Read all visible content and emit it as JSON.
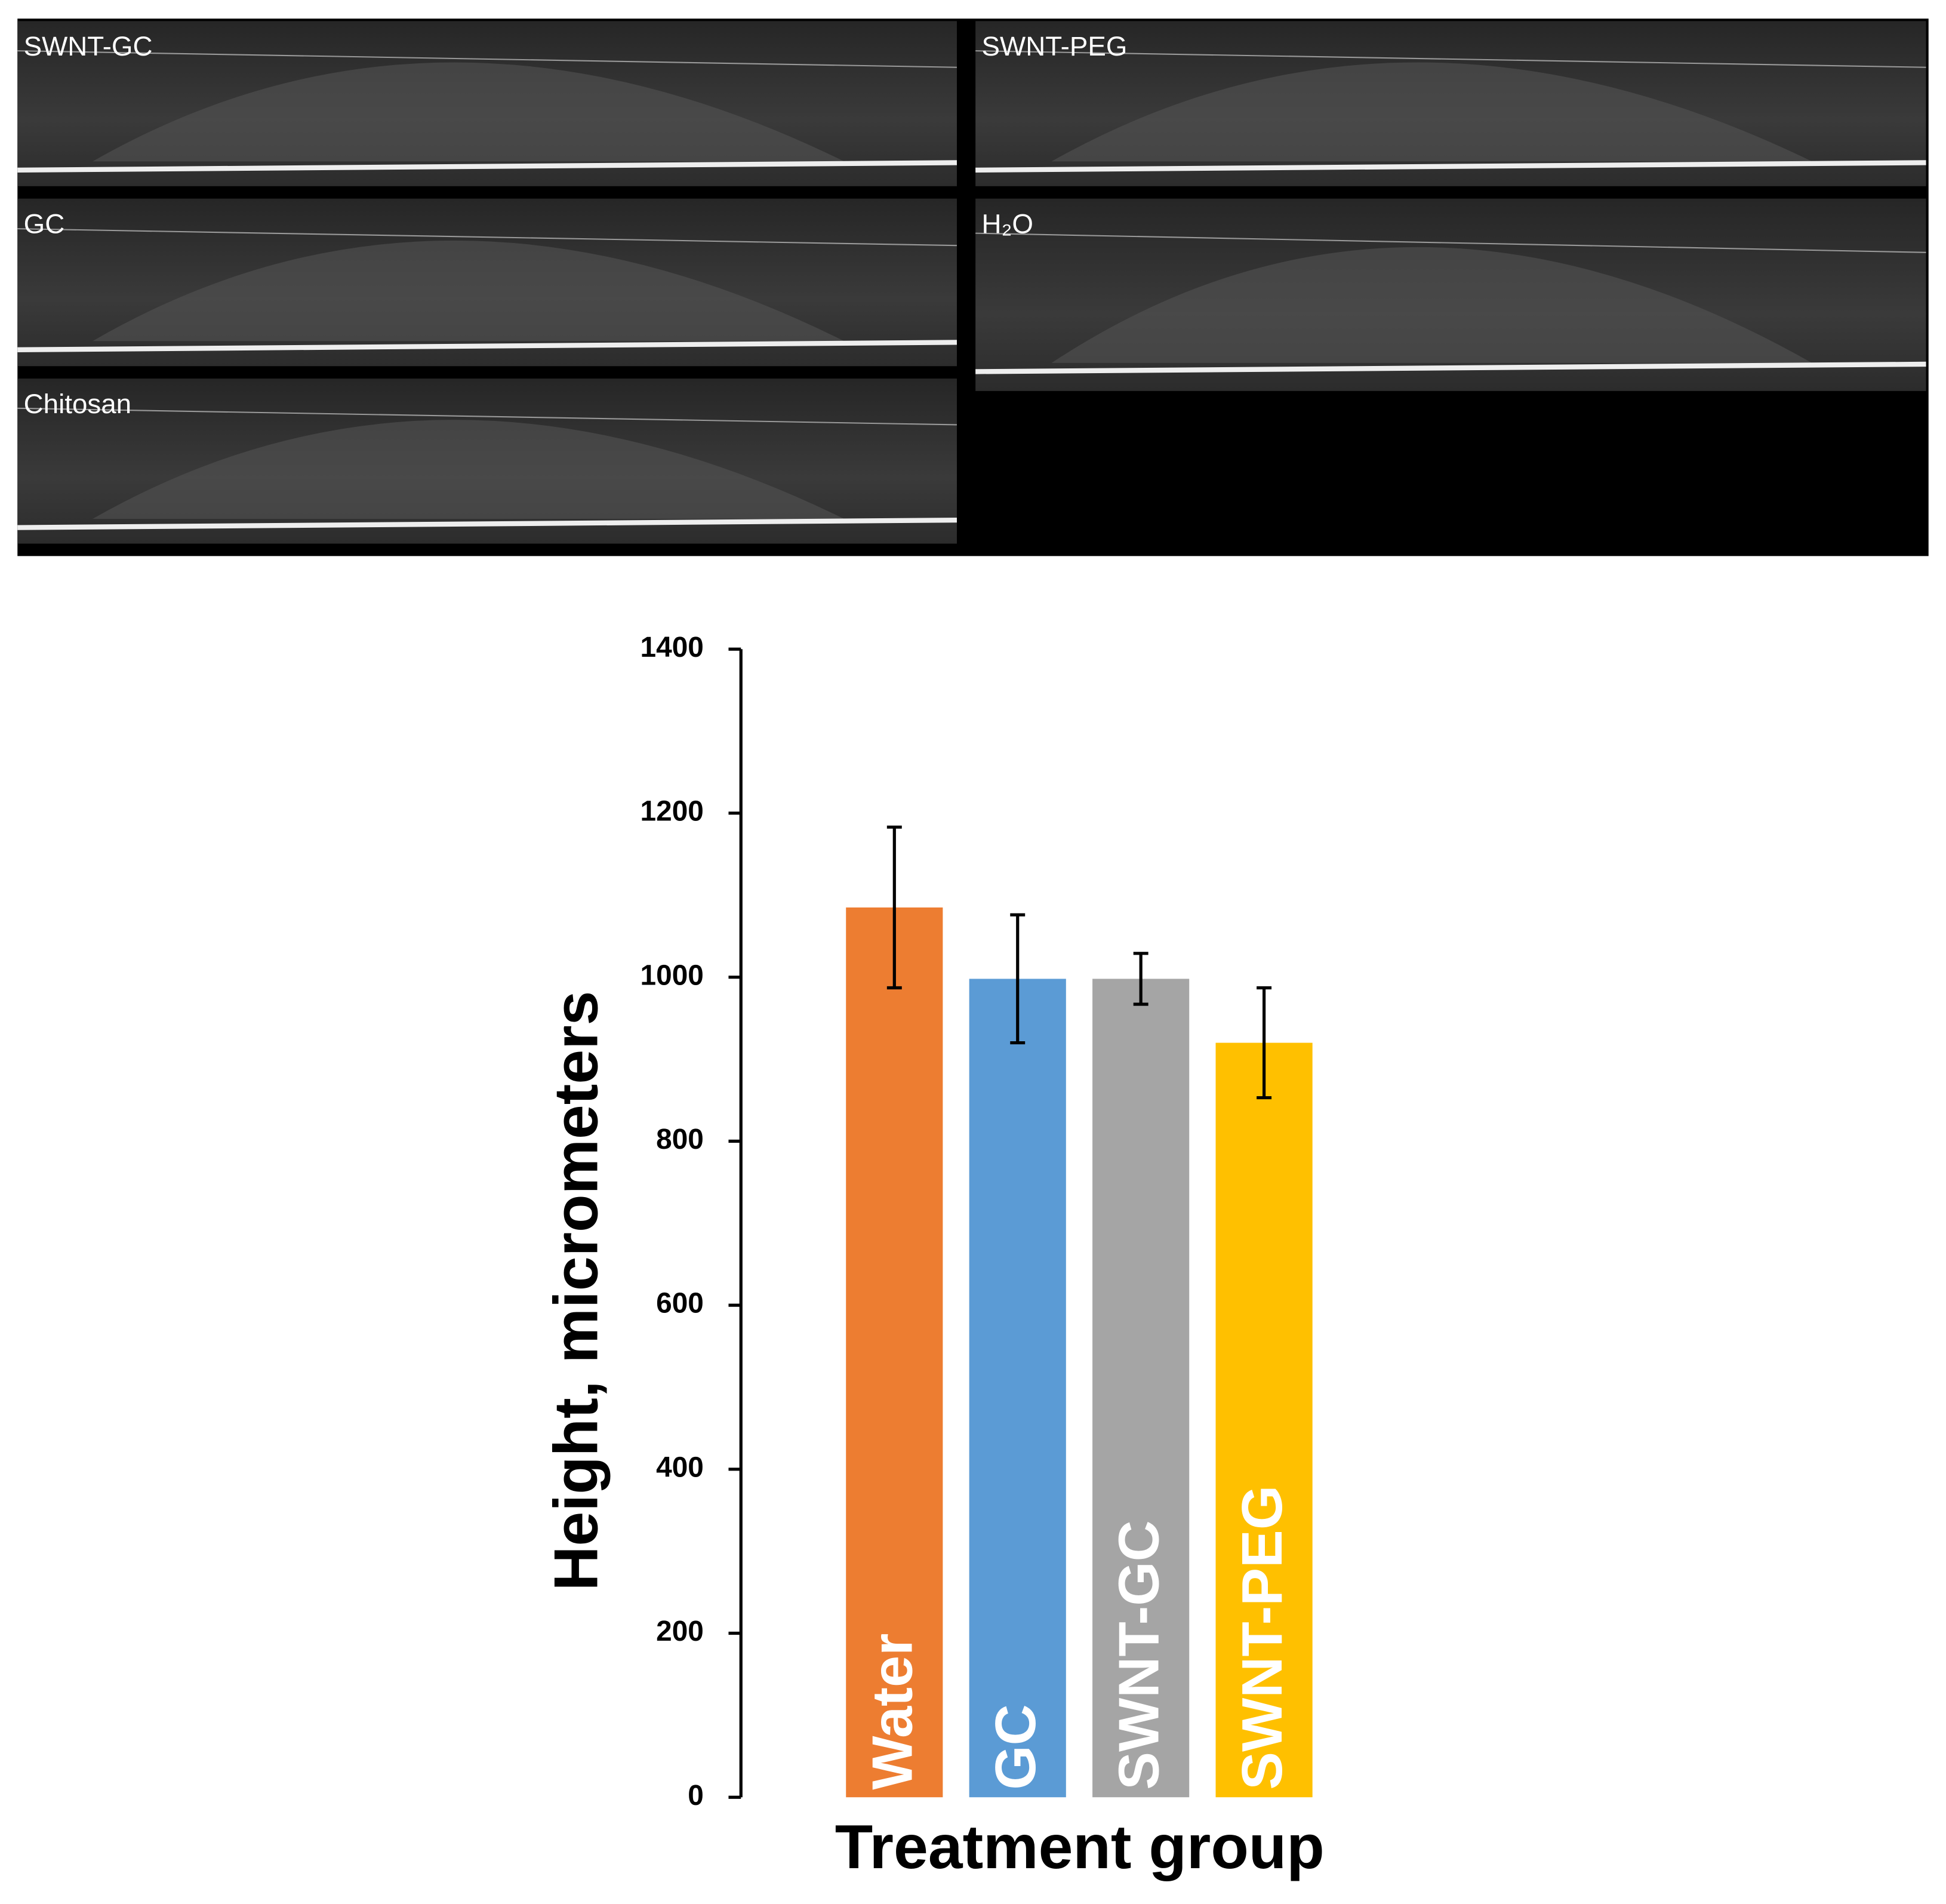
{
  "image_panels": [
    {
      "label": "SWNT-GC"
    },
    {
      "label": "GC"
    },
    {
      "label": "Chitosan"
    },
    {
      "label": "SWNT-PEG"
    },
    {
      "label": "H₂O"
    }
  ],
  "chart_data": {
    "type": "bar",
    "categories": [
      "Water",
      "GC",
      "SWNT-GC",
      "SWNT-PEG"
    ],
    "values": [
      1085,
      998,
      998,
      920
    ],
    "errors": [
      98,
      78,
      31,
      67
    ],
    "colors": [
      "#ed7d31",
      "#5b9bd5",
      "#a5a5a5",
      "#ffc000"
    ],
    "ylabel": "Height, micrometers",
    "xlabel": "Treatment group",
    "ylim": [
      0,
      1400
    ],
    "yticks": [
      0,
      200,
      400,
      600,
      800,
      1000,
      1200,
      1400
    ],
    "grid": false
  }
}
